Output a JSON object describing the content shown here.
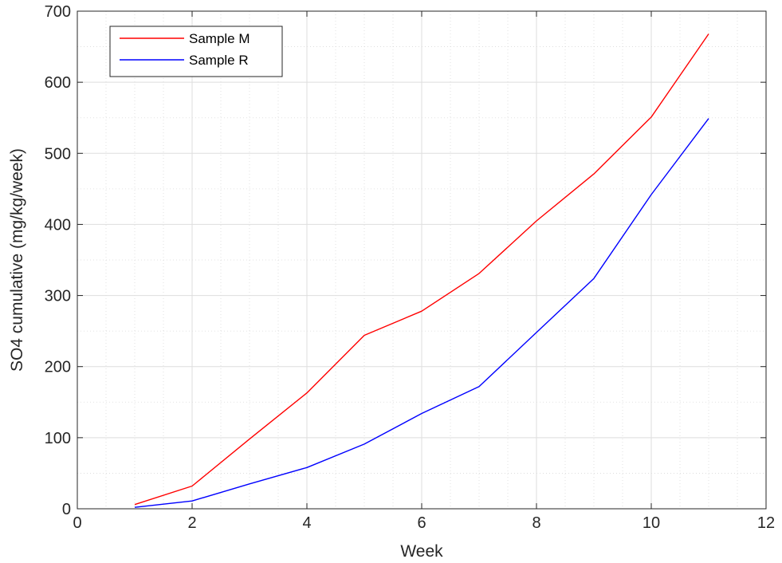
{
  "chart_data": {
    "type": "line",
    "title": "",
    "xlabel": "Week",
    "ylabel": "SO4 cumulative (mg/kg/week)",
    "xlim": [
      0,
      12
    ],
    "ylim": [
      0,
      700
    ],
    "xticks": [
      0,
      2,
      4,
      6,
      8,
      10,
      12
    ],
    "yticks": [
      0,
      100,
      200,
      300,
      400,
      500,
      600,
      700
    ],
    "grid": true,
    "minor_grid": true,
    "legend_position": "top-left",
    "series": [
      {
        "name": "Sample M",
        "color": "#ff0000",
        "x": [
          1,
          2,
          3,
          4,
          5,
          6,
          7,
          8,
          9,
          10,
          11
        ],
        "y": [
          6,
          32,
          98,
          163,
          244,
          278,
          331,
          405,
          471,
          551,
          668
        ]
      },
      {
        "name": "Sample R",
        "color": "#0000ff",
        "x": [
          1,
          2,
          3,
          4,
          5,
          6,
          7,
          8,
          9,
          10,
          11
        ],
        "y": [
          2,
          11,
          35,
          58,
          91,
          134,
          172,
          248,
          324,
          442,
          549
        ]
      }
    ]
  }
}
